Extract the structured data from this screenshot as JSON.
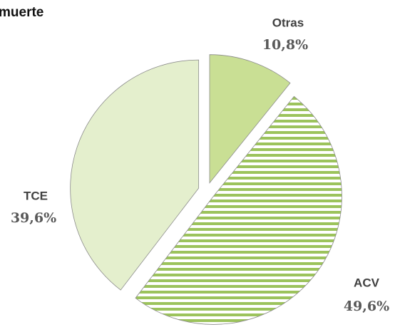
{
  "chart_data": {
    "type": "pie",
    "title": "muerte",
    "categories": [
      "Otras",
      "ACV",
      "TCE"
    ],
    "values": [
      10.8,
      49.6,
      39.6
    ],
    "value_labels": [
      "10,8%",
      "49,6%",
      "39,6%"
    ],
    "colors": [
      "#c9df94",
      "#9cc35c",
      "#e4efcd"
    ],
    "hatch": [
      false,
      true,
      false
    ]
  }
}
